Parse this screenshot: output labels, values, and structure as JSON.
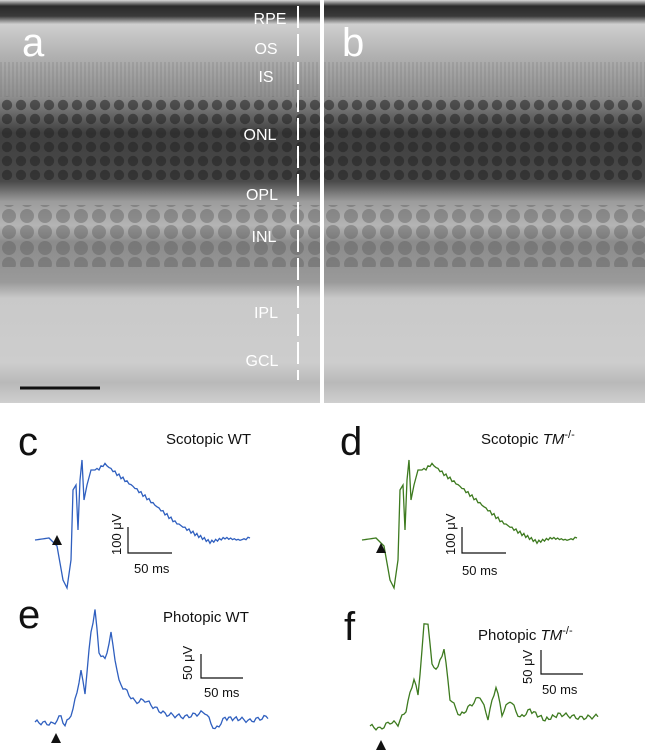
{
  "histology": {
    "panel_a_label": "a",
    "panel_b_label": "b",
    "layers": [
      "RPE",
      "OS",
      "IS",
      "ONL",
      "OPL",
      "INL",
      "IPL",
      "GCL"
    ]
  },
  "erg": {
    "c": {
      "label": "c",
      "title": "Scotopic WT",
      "color": "#2f5fbf",
      "scale_v": "100 μV",
      "scale_t": "50 ms"
    },
    "d": {
      "label": "d",
      "title_prefix": "Scotopic ",
      "title_italic": "TM",
      "title_sup": "-/-",
      "color": "#3d7a1f",
      "scale_v": "100 μV",
      "scale_t": "50 ms"
    },
    "e": {
      "label": "e",
      "title": "Photopic WT",
      "color": "#2f5fbf",
      "scale_v": "50 μV",
      "scale_t": "50 ms"
    },
    "f": {
      "label": "f",
      "title_prefix": "Photopic ",
      "title_italic": "TM",
      "title_sup": "-/-",
      "color": "#3d7a1f",
      "scale_v": "50 μV",
      "scale_t": "50 ms"
    }
  }
}
